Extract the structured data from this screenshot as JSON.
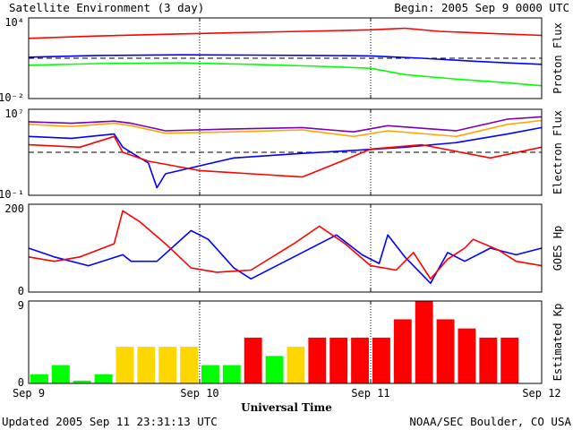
{
  "header": {
    "title": "Satellite Environment (3 day)",
    "begin": "Begin:  2005 Sep 9 0000 UTC"
  },
  "footer": {
    "updated": "Updated 2005 Sep 11 23:31:13 UTC",
    "credit": "NOAA/SEC Boulder, CO USA",
    "xlabel": "Universal Time"
  },
  "x_axis": {
    "ticks": [
      "Sep 9",
      "Sep 10",
      "Sep 11",
      "Sep 12"
    ],
    "range_days": [
      0,
      3
    ]
  },
  "colors": {
    "red": "#ff0000",
    "blue": "#0000ff",
    "green": "#00ff00",
    "orange": "#ffa500",
    "purple": "#7a00b4",
    "yellow": "#ffd700"
  },
  "chart_data": [
    {
      "type": "line",
      "ylabel": "Proton Flux",
      "yscale": "log",
      "ylim": [
        0.01,
        10000
      ],
      "ytick_labels": [
        "10⁴",
        "10⁻²"
      ],
      "threshold": 10,
      "series": [
        {
          "color": "#ff0000",
          "points": [
            [
              0,
              300
            ],
            [
              0.4,
              450
            ],
            [
              0.9,
              650
            ],
            [
              1.2,
              800
            ],
            [
              1.6,
              1000
            ],
            [
              2.0,
              1300
            ],
            [
              2.2,
              1700
            ],
            [
              2.4,
              1000
            ],
            [
              2.7,
              700
            ],
            [
              3.0,
              500
            ]
          ]
        },
        {
          "color": "#0000ff",
          "points": [
            [
              0,
              12
            ],
            [
              0.4,
              16
            ],
            [
              0.9,
              18
            ],
            [
              1.3,
              17
            ],
            [
              1.7,
              16
            ],
            [
              2.0,
              15
            ],
            [
              2.3,
              10
            ],
            [
              2.6,
              6
            ],
            [
              2.8,
              4.5
            ],
            [
              3.0,
              3.5
            ]
          ]
        },
        {
          "color": "#00ff00",
          "points": [
            [
              0,
              3
            ],
            [
              0.4,
              4
            ],
            [
              0.9,
              4.5
            ],
            [
              1.3,
              3.5
            ],
            [
              1.7,
              2.5
            ],
            [
              2.0,
              1.8
            ],
            [
              2.2,
              0.6
            ],
            [
              2.5,
              0.28
            ],
            [
              2.8,
              0.15
            ],
            [
              3.0,
              0.09
            ]
          ]
        }
      ]
    },
    {
      "type": "line",
      "ylabel": "Electron Flux",
      "yscale": "log",
      "ylim": [
        0.1,
        10000000
      ],
      "ytick_labels": [
        "10⁷",
        "10⁻¹"
      ],
      "threshold": 1000,
      "series": [
        {
          "color": "#7a00b4",
          "points": [
            [
              0,
              700000
            ],
            [
              0.25,
              500000
            ],
            [
              0.5,
              800000
            ],
            [
              0.6,
              500000
            ],
            [
              0.8,
              100000
            ],
            [
              1.2,
              150000
            ],
            [
              1.6,
              200000
            ],
            [
              1.9,
              80000
            ],
            [
              2.1,
              300000
            ],
            [
              2.5,
              100000
            ],
            [
              2.8,
              1200000
            ],
            [
              3.0,
              2000000
            ]
          ]
        },
        {
          "color": "#ffa500",
          "points": [
            [
              0,
              400000
            ],
            [
              0.25,
              250000
            ],
            [
              0.5,
              500000
            ],
            [
              0.6,
              300000
            ],
            [
              0.8,
              60000
            ],
            [
              1.2,
              80000
            ],
            [
              1.6,
              120000
            ],
            [
              1.9,
              30000
            ],
            [
              2.1,
              100000
            ],
            [
              2.5,
              30000
            ],
            [
              2.8,
              400000
            ],
            [
              3.0,
              900000
            ]
          ]
        },
        {
          "color": "#0000ff",
          "points": [
            [
              0,
              30000
            ],
            [
              0.25,
              20000
            ],
            [
              0.5,
              50000
            ],
            [
              0.55,
              3000
            ],
            [
              0.7,
              100
            ],
            [
              0.75,
              0.5
            ],
            [
              0.8,
              10
            ],
            [
              1.2,
              300
            ],
            [
              1.6,
              800
            ],
            [
              1.9,
              1500
            ],
            [
              2.2,
              3000
            ],
            [
              2.5,
              8000
            ],
            [
              2.8,
              50000
            ],
            [
              3.0,
              200000
            ]
          ]
        },
        {
          "color": "#ff0000",
          "points": [
            [
              0,
              5000
            ],
            [
              0.3,
              3000
            ],
            [
              0.5,
              30000
            ],
            [
              0.55,
              1000
            ],
            [
              0.7,
              150
            ],
            [
              1.0,
              20
            ],
            [
              1.3,
              10
            ],
            [
              1.6,
              5
            ],
            [
              1.85,
              200
            ],
            [
              2.0,
              2000
            ],
            [
              2.3,
              5000
            ],
            [
              2.7,
              300
            ],
            [
              3.0,
              3000
            ]
          ]
        }
      ]
    },
    {
      "type": "line",
      "ylabel": "GOES Hp",
      "ylim": [
        0,
        200
      ],
      "ytick_labels": [
        "200",
        "0"
      ],
      "series": [
        {
          "color": "#0000ff",
          "points": [
            [
              0,
              100
            ],
            [
              0.15,
              80
            ],
            [
              0.35,
              60
            ],
            [
              0.55,
              85
            ],
            [
              0.6,
              70
            ],
            [
              0.75,
              70
            ],
            [
              0.95,
              140
            ],
            [
              1.05,
              120
            ],
            [
              1.2,
              55
            ],
            [
              1.3,
              30
            ],
            [
              1.55,
              80
            ],
            [
              1.8,
              130
            ],
            [
              1.95,
              85
            ],
            [
              2.05,
              65
            ],
            [
              2.1,
              130
            ],
            [
              2.2,
              80
            ],
            [
              2.35,
              20
            ],
            [
              2.45,
              90
            ],
            [
              2.55,
              70
            ],
            [
              2.7,
              100
            ],
            [
              2.85,
              85
            ],
            [
              3.0,
              100
            ]
          ]
        },
        {
          "color": "#ff0000",
          "points": [
            [
              0,
              80
            ],
            [
              0.15,
              70
            ],
            [
              0.3,
              80
            ],
            [
              0.5,
              110
            ],
            [
              0.55,
              185
            ],
            [
              0.65,
              160
            ],
            [
              0.8,
              110
            ],
            [
              0.95,
              55
            ],
            [
              1.1,
              45
            ],
            [
              1.3,
              50
            ],
            [
              1.55,
              110
            ],
            [
              1.7,
              150
            ],
            [
              1.85,
              110
            ],
            [
              2.0,
              60
            ],
            [
              2.15,
              50
            ],
            [
              2.25,
              90
            ],
            [
              2.35,
              30
            ],
            [
              2.45,
              75
            ],
            [
              2.55,
              100
            ],
            [
              2.6,
              120
            ],
            [
              2.75,
              95
            ],
            [
              2.85,
              70
            ],
            [
              3.0,
              60
            ]
          ]
        }
      ]
    },
    {
      "type": "bar",
      "ylabel": "Estimated Kp",
      "ylim": [
        0,
        9
      ],
      "ytick_labels": [
        "9",
        "0"
      ],
      "bar_width_days": 0.125,
      "color_rule": {
        "green_below": 4,
        "yellow_equal": 4,
        "red_above": 4
      },
      "values": [
        1,
        2,
        0.3,
        1,
        4,
        4,
        4,
        4,
        2,
        2,
        5,
        3,
        4,
        5,
        5,
        5,
        5,
        7,
        9,
        7,
        6,
        5,
        5
      ]
    }
  ]
}
